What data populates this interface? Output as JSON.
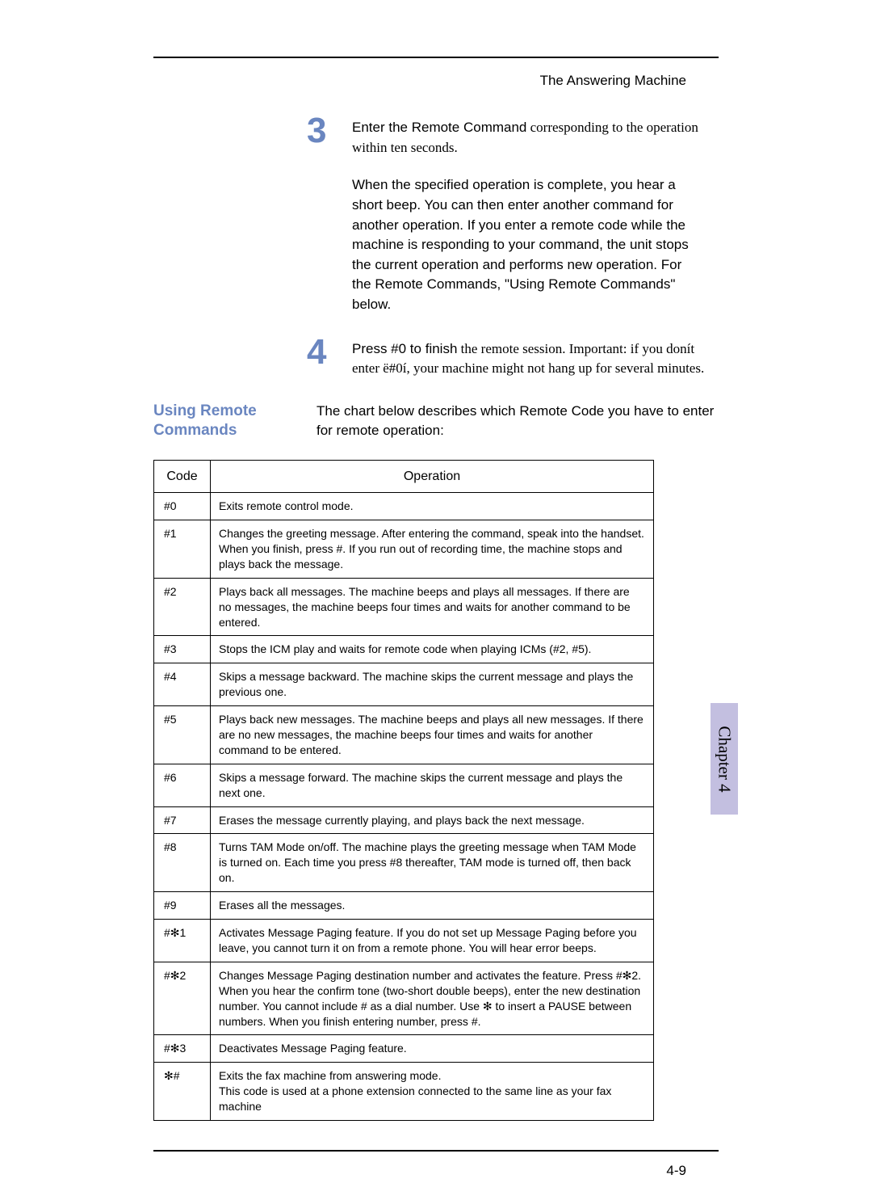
{
  "header": {
    "section_label": "The Answering Machine"
  },
  "chapter_tab": {
    "label": "Chapter 4",
    "bg_color": "#c3bfe0"
  },
  "steps": [
    {
      "num": "3",
      "lead": "Enter the Remote Command",
      "tail": " corresponding to the operation within ten seconds.",
      "note": "When the specified operation is complete, you hear a short beep. You can then enter another command for another operation. If you enter a remote code while the machine is responding to your command, the unit stops the current operation and performs new operation. For the Remote Commands, \"Using Remote Commands\" below."
    },
    {
      "num": "4",
      "lead": "Press #0 to ﬁnish",
      "tail": " the remote session. Important: if you donít enter ë#0í, your machine might not hang up for several minutes.",
      "note": ""
    }
  ],
  "section": {
    "title": "Using Remote Commands",
    "intro": "The chart below describes which Remote Code you have to enter for remote operation:"
  },
  "table": {
    "columns": [
      "Code",
      "Operation"
    ],
    "rows": [
      [
        "#0",
        "Exits remote control mode."
      ],
      [
        "#1",
        "Changes the greeting message. After entering the command, speak into the handset. When you ﬁnish, press #. If you run out of recording time, the machine stops and plays back the message."
      ],
      [
        "#2",
        "Plays back all messages. The machine beeps and plays all messages. If there are no messages, the machine beeps four times and waits for another command to be entered."
      ],
      [
        "#3",
        "Stops the ICM play and waits for remote code when playing ICMs (#2, #5)."
      ],
      [
        "#4",
        "Skips a message backward. The machine skips the current message and plays the previous one."
      ],
      [
        "#5",
        "Plays back new messages. The machine beeps and plays all new messages. If there are no new messages, the machine beeps four times and waits for another command to be entered."
      ],
      [
        "#6",
        "Skips a message forward. The machine skips the current message and plays the next one."
      ],
      [
        "#7",
        "Erases the message currently playing, and plays back the next message."
      ],
      [
        "#8",
        "Turns TAM Mode on/off. The machine plays the greeting message when TAM Mode is turned on. Each time you press #8 thereafter, TAM mode is turned off, then back on."
      ],
      [
        "#9",
        "Erases all the messages."
      ],
      [
        "#✻1",
        "Activates Message Paging feature. If you do not set up Message Paging before you leave, you cannot turn it on from a remote phone. You will hear error beeps."
      ],
      [
        "#✻2",
        "Changes Message Paging destination number and activates the feature. Press #✻2. When you hear the conﬁrm tone (two-short double beeps), enter the new destination number. You cannot include # as a dial number. Use ✻ to insert a PAUSE between numbers. When you ﬁnish entering number, press #."
      ],
      [
        "#✻3",
        "Deactivates Message Paging feature."
      ],
      [
        "✻#",
        "Exits the fax machine from answering mode.\nThis code is used at a phone extension connected to the same line as your fax machine"
      ]
    ]
  },
  "footer": {
    "page_num": "4-9"
  }
}
